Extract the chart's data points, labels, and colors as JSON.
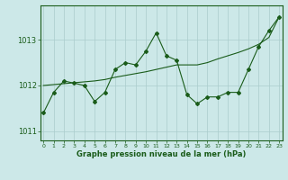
{
  "x": [
    0,
    1,
    2,
    3,
    4,
    5,
    6,
    7,
    8,
    9,
    10,
    11,
    12,
    13,
    14,
    15,
    16,
    17,
    18,
    19,
    20,
    21,
    22,
    23
  ],
  "y_main": [
    1011.4,
    1011.85,
    1012.1,
    1012.05,
    1012.0,
    1011.65,
    1011.85,
    1012.35,
    1012.5,
    1012.45,
    1012.75,
    1013.15,
    1012.65,
    1012.55,
    1011.8,
    1011.6,
    1011.75,
    1011.75,
    1011.85,
    1011.85,
    1012.35,
    1012.85,
    1013.2,
    1013.5
  ],
  "y_trend": [
    1012.0,
    1012.02,
    1012.04,
    1012.06,
    1012.08,
    1012.1,
    1012.13,
    1012.18,
    1012.22,
    1012.26,
    1012.3,
    1012.35,
    1012.4,
    1012.45,
    1012.45,
    1012.45,
    1012.5,
    1012.58,
    1012.65,
    1012.72,
    1012.8,
    1012.9,
    1013.05,
    1013.5
  ],
  "bg_color": "#cce8e8",
  "line_color": "#1a5c1a",
  "grid_color": "#aacccc",
  "xlabel": "Graphe pression niveau de la mer (hPa)",
  "ylim": [
    1010.8,
    1013.75
  ],
  "yticks": [
    1011,
    1012,
    1013
  ],
  "xticks": [
    0,
    1,
    2,
    3,
    4,
    5,
    6,
    7,
    8,
    9,
    10,
    11,
    12,
    13,
    14,
    15,
    16,
    17,
    18,
    19,
    20,
    21,
    22,
    23
  ]
}
